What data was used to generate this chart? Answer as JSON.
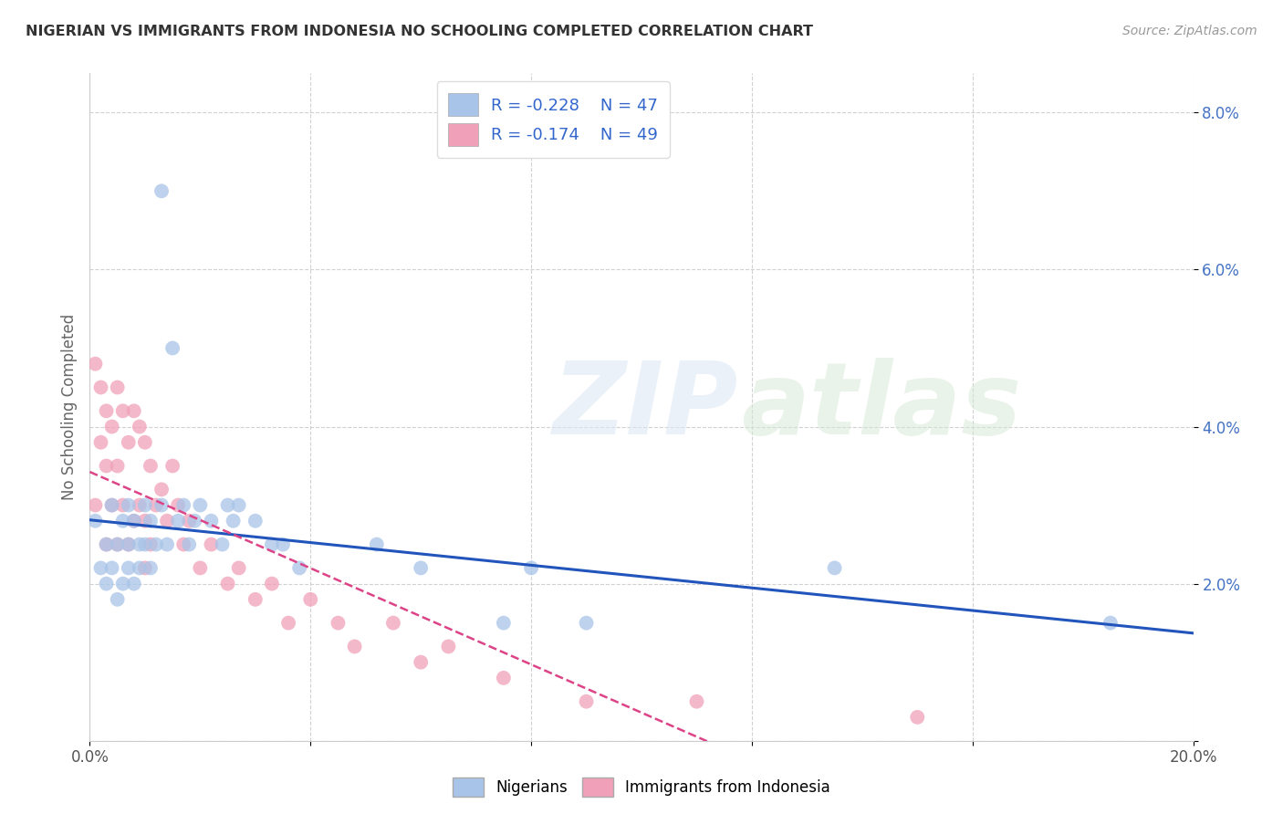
{
  "title": "NIGERIAN VS IMMIGRANTS FROM INDONESIA NO SCHOOLING COMPLETED CORRELATION CHART",
  "source": "Source: ZipAtlas.com",
  "ylabel": "No Schooling Completed",
  "xlim": [
    0.0,
    0.2
  ],
  "ylim": [
    0.0,
    0.085
  ],
  "xticks": [
    0.0,
    0.04,
    0.08,
    0.12,
    0.16,
    0.2
  ],
  "yticks": [
    0.0,
    0.02,
    0.04,
    0.06,
    0.08
  ],
  "legend_r_nigerian": "-0.228",
  "legend_n_nigerian": "47",
  "legend_r_indonesia": "-0.174",
  "legend_n_indonesia": "49",
  "nigerian_color": "#a8c4e8",
  "indonesia_color": "#f0a0b8",
  "trendline_nigerian_color": "#2255bb",
  "trendline_indonesia_color": "#dd4488",
  "background_color": "#ffffff",
  "grid_color": "#cccccc",
  "nigerian_x": [
    0.001,
    0.002,
    0.003,
    0.003,
    0.004,
    0.004,
    0.005,
    0.005,
    0.006,
    0.006,
    0.007,
    0.007,
    0.007,
    0.008,
    0.008,
    0.009,
    0.009,
    0.01,
    0.01,
    0.011,
    0.011,
    0.012,
    0.013,
    0.013,
    0.014,
    0.015,
    0.016,
    0.017,
    0.018,
    0.019,
    0.02,
    0.022,
    0.024,
    0.025,
    0.026,
    0.027,
    0.03,
    0.033,
    0.035,
    0.038,
    0.052,
    0.06,
    0.075,
    0.08,
    0.09,
    0.135,
    0.185
  ],
  "nigerian_y": [
    0.028,
    0.022,
    0.025,
    0.02,
    0.03,
    0.022,
    0.025,
    0.018,
    0.028,
    0.02,
    0.025,
    0.03,
    0.022,
    0.028,
    0.02,
    0.025,
    0.022,
    0.03,
    0.025,
    0.028,
    0.022,
    0.025,
    0.07,
    0.03,
    0.025,
    0.05,
    0.028,
    0.03,
    0.025,
    0.028,
    0.03,
    0.028,
    0.025,
    0.03,
    0.028,
    0.03,
    0.028,
    0.025,
    0.025,
    0.022,
    0.025,
    0.022,
    0.015,
    0.022,
    0.015,
    0.022,
    0.015
  ],
  "indonesia_x": [
    0.001,
    0.001,
    0.002,
    0.002,
    0.003,
    0.003,
    0.003,
    0.004,
    0.004,
    0.005,
    0.005,
    0.005,
    0.006,
    0.006,
    0.007,
    0.007,
    0.008,
    0.008,
    0.009,
    0.009,
    0.01,
    0.01,
    0.01,
    0.011,
    0.011,
    0.012,
    0.013,
    0.014,
    0.015,
    0.016,
    0.017,
    0.018,
    0.02,
    0.022,
    0.025,
    0.027,
    0.03,
    0.033,
    0.036,
    0.04,
    0.045,
    0.048,
    0.055,
    0.06,
    0.065,
    0.075,
    0.09,
    0.11,
    0.15
  ],
  "indonesia_y": [
    0.03,
    0.048,
    0.038,
    0.045,
    0.042,
    0.035,
    0.025,
    0.04,
    0.03,
    0.045,
    0.035,
    0.025,
    0.042,
    0.03,
    0.038,
    0.025,
    0.042,
    0.028,
    0.04,
    0.03,
    0.038,
    0.028,
    0.022,
    0.035,
    0.025,
    0.03,
    0.032,
    0.028,
    0.035,
    0.03,
    0.025,
    0.028,
    0.022,
    0.025,
    0.02,
    0.022,
    0.018,
    0.02,
    0.015,
    0.018,
    0.015,
    0.012,
    0.015,
    0.01,
    0.012,
    0.008,
    0.005,
    0.005,
    0.003
  ]
}
